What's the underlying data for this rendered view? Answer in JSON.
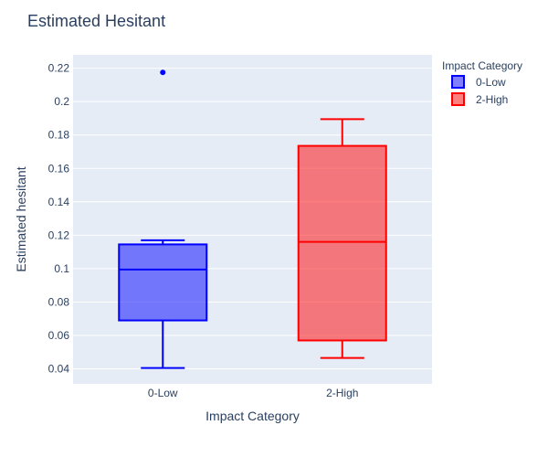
{
  "chart_data": {
    "type": "box",
    "title": "Estimated Hesitant",
    "xlabel": "Impact Category",
    "ylabel": "Estimated hesitant",
    "ylim": [
      0.031,
      0.228
    ],
    "yticks": [
      0.04,
      0.06,
      0.08,
      0.1,
      0.12,
      0.14,
      0.16,
      0.18,
      0.2,
      0.22
    ],
    "yticklabels": [
      "0.04",
      "0.06",
      "0.08",
      "0.1",
      "0.12",
      "0.14",
      "0.16",
      "0.18",
      "0.2",
      "0.22"
    ],
    "categories": [
      "0-Low",
      "2-High"
    ],
    "legend": {
      "title": "Impact Category",
      "position": "right"
    },
    "grid": true,
    "series": [
      {
        "name": "0-Low",
        "color": "#0000ff",
        "fill": "rgba(0,0,255,0.5)",
        "whisker_low": 0.0405,
        "q1": 0.069,
        "median": 0.0995,
        "q3": 0.1145,
        "whisker_high": 0.117,
        "outliers": [
          0.2175
        ]
      },
      {
        "name": "2-High",
        "color": "#ff0000",
        "fill": "rgba(255,0,0,0.5)",
        "whisker_low": 0.0465,
        "q1": 0.057,
        "median": 0.116,
        "q3": 0.1735,
        "whisker_high": 0.1895,
        "outliers": []
      }
    ]
  }
}
